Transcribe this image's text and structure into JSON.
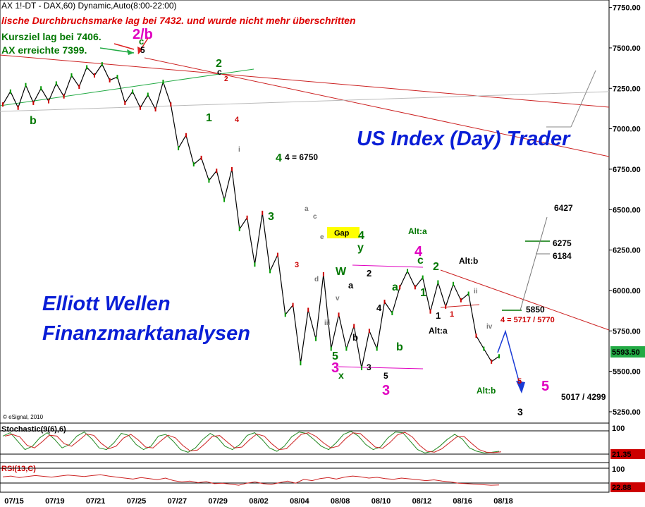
{
  "header": {
    "title": "AX 1!-DT - DAX,60) Dynamic,Auto(8:00-22:00)",
    "breakout_note": "lische Durchbruchsmarke lag bei 7432. und wurde nicht mehr überschritten",
    "target_note": "Kursziel lag bei 7406.",
    "reached_note": "AX erreichte 7399.",
    "copyright": "© eSignal, 2010"
  },
  "overlays": {
    "brand_right": "US Index (Day) Trader",
    "brand_left_1": "Elliott Wellen",
    "brand_left_2": "Finanzmarktanalysen"
  },
  "chart_data": {
    "type": "line",
    "title": "AX 1!-DT - DAX,60) Dynamic,Auto(8:00-22:00)",
    "price_axis": {
      "ticks": [
        "7750.00",
        "7500.00",
        "7250.00",
        "7000.00",
        "6750.00",
        "6500.00",
        "6250.00",
        "6000.00",
        "5750.00",
        "5500.00",
        "5250.00"
      ],
      "range": [
        5180,
        7770
      ],
      "last_price": "5593.50"
    },
    "date_axis": {
      "ticks": [
        "07/15",
        "07/19",
        "07/21",
        "07/25",
        "07/27",
        "07/29",
        "08/02",
        "08/04",
        "08/08",
        "08/10",
        "08/12",
        "08/16",
        "08/18"
      ]
    },
    "price_series": [
      {
        "d": "07/15",
        "v": 7150
      },
      {
        "d": "07/16",
        "v": 7230
      },
      {
        "d": "07/16",
        "v": 7130
      },
      {
        "d": "07/19",
        "v": 7270
      },
      {
        "d": "07/19",
        "v": 7160
      },
      {
        "d": "07/20",
        "v": 7250
      },
      {
        "d": "07/20",
        "v": 7170
      },
      {
        "d": "07/21",
        "v": 7280
      },
      {
        "d": "07/21",
        "v": 7200
      },
      {
        "d": "07/22",
        "v": 7330
      },
      {
        "d": "07/22",
        "v": 7260
      },
      {
        "d": "07/25",
        "v": 7380
      },
      {
        "d": "07/25",
        "v": 7330
      },
      {
        "d": "07/26",
        "v": 7399
      },
      {
        "d": "07/26",
        "v": 7300
      },
      {
        "d": "07/27",
        "v": 7320
      },
      {
        "d": "07/27",
        "v": 7160
      },
      {
        "d": "07/28",
        "v": 7230
      },
      {
        "d": "07/28",
        "v": 7130
      },
      {
        "d": "07/29",
        "v": 7210
      },
      {
        "d": "07/29",
        "v": 7120
      },
      {
        "d": "07/29",
        "v": 7290
      },
      {
        "d": "08/01",
        "v": 7150
      },
      {
        "d": "08/01",
        "v": 6880
      },
      {
        "d": "08/02",
        "v": 6960
      },
      {
        "d": "08/02",
        "v": 6780
      },
      {
        "d": "08/03",
        "v": 6820
      },
      {
        "d": "08/03",
        "v": 6680
      },
      {
        "d": "08/04",
        "v": 6740
      },
      {
        "d": "08/04",
        "v": 6560
      },
      {
        "d": "08/04",
        "v": 6750
      },
      {
        "d": "08/05",
        "v": 6380
      },
      {
        "d": "08/05",
        "v": 6450
      },
      {
        "d": "08/05",
        "v": 6160
      },
      {
        "d": "08/08",
        "v": 6480
      },
      {
        "d": "08/08",
        "v": 6120
      },
      {
        "d": "08/08",
        "v": 6220
      },
      {
        "d": "08/09",
        "v": 5850
      },
      {
        "d": "08/09",
        "v": 5910
      },
      {
        "d": "08/09",
        "v": 5550
      },
      {
        "d": "08/09",
        "v": 5880
      },
      {
        "d": "08/09",
        "v": 5700
      },
      {
        "d": "08/10",
        "v": 6100
      },
      {
        "d": "08/10",
        "v": 5640
      },
      {
        "d": "08/10",
        "v": 5850
      },
      {
        "d": "08/10",
        "v": 5640
      },
      {
        "d": "08/11",
        "v": 5780
      },
      {
        "d": "08/11",
        "v": 5520
      },
      {
        "d": "08/11",
        "v": 5750
      },
      {
        "d": "08/11",
        "v": 5640
      },
      {
        "d": "08/12",
        "v": 5930
      },
      {
        "d": "08/12",
        "v": 5860
      },
      {
        "d": "08/12",
        "v": 6020
      },
      {
        "d": "08/15",
        "v": 6120
      },
      {
        "d": "08/15",
        "v": 6020
      },
      {
        "d": "08/15",
        "v": 6080
      },
      {
        "d": "08/16",
        "v": 5870
      },
      {
        "d": "08/16",
        "v": 6050
      },
      {
        "d": "08/16",
        "v": 5900
      },
      {
        "d": "08/17",
        "v": 6040
      },
      {
        "d": "08/17",
        "v": 5940
      },
      {
        "d": "08/17",
        "v": 5980
      },
      {
        "d": "08/18",
        "v": 5720
      },
      {
        "d": "08/18",
        "v": 5640
      },
      {
        "d": "08/18",
        "v": 5560
      },
      {
        "d": "08/18",
        "v": 5593
      }
    ],
    "level_labels": [
      "6427",
      "6275",
      "6184",
      "5850",
      "4 = 5717 / 5770",
      "5017 / 4299",
      "4 = 6750"
    ],
    "wave_labels": [
      {
        "t": "2/b",
        "c": "#e000c0"
      },
      {
        "t": "c",
        "c": "#007700"
      },
      {
        "t": "5",
        "c": "#000"
      },
      {
        "t": "2",
        "c": "#007700"
      },
      {
        "t": "c",
        "c": "#000"
      },
      {
        "t": "2",
        "c": "#cc0000"
      },
      {
        "t": "1",
        "c": "#007700"
      },
      {
        "t": "b",
        "c": "#007700"
      },
      {
        "t": "3",
        "c": "#007700"
      },
      {
        "t": "4",
        "c": "#007700"
      },
      {
        "t": "3",
        "c": "#e000c0"
      },
      {
        "t": "5",
        "c": "#007700"
      },
      {
        "t": "x",
        "c": "#007700"
      },
      {
        "t": "W",
        "c": "#007700"
      },
      {
        "t": "4",
        "c": "#007700"
      },
      {
        "t": "y",
        "c": "#007700"
      },
      {
        "t": "4",
        "c": "#e000c0"
      },
      {
        "t": "3",
        "c": "#e000c0"
      },
      {
        "t": "5",
        "c": "#e000c0"
      },
      {
        "t": "1",
        "c": "#007700"
      },
      {
        "t": "2",
        "c": "#007700"
      },
      {
        "t": "a",
        "c": "#007700"
      },
      {
        "t": "b",
        "c": "#007700"
      },
      {
        "t": "c",
        "c": "#007700"
      },
      {
        "t": "Alt:a",
        "c": "#007700"
      },
      {
        "t": "Alt:b",
        "c": "#000"
      },
      {
        "t": "Alt:a",
        "c": "#000"
      },
      {
        "t": "Alt:b",
        "c": "#007700"
      },
      {
        "t": "Gap",
        "c": "#000"
      },
      {
        "t": "3",
        "c": "#000"
      },
      {
        "t": "5",
        "c": "#000"
      },
      {
        "t": "3",
        "c": "#000"
      },
      {
        "t": "2",
        "c": "#000"
      },
      {
        "t": "4",
        "c": "#000"
      },
      {
        "t": "1",
        "c": "#000"
      },
      {
        "t": "b",
        "c": "#000"
      },
      {
        "t": "a",
        "c": "#000"
      },
      {
        "t": "1",
        "c": "#cc0000"
      },
      {
        "t": "4",
        "c": "#cc0000"
      },
      {
        "t": "3",
        "c": "#cc0000"
      },
      {
        "t": "5",
        "c": "#cc0000"
      },
      {
        "t": "iii",
        "c": "#777"
      },
      {
        "t": "iv",
        "c": "#777"
      },
      {
        "t": "ii",
        "c": "#777"
      },
      {
        "t": "i",
        "c": "#777"
      },
      {
        "t": "v",
        "c": "#777"
      },
      {
        "t": "a",
        "c": "#777"
      },
      {
        "t": "c",
        "c": "#777"
      },
      {
        "t": "d",
        "c": "#777"
      },
      {
        "t": "e",
        "c": "#777"
      }
    ],
    "stochastic": {
      "label": "Stochastic(9(6),6)",
      "ticks": [
        "100"
      ],
      "last": "21.35",
      "k": [
        70,
        80,
        55,
        30,
        40,
        65,
        80,
        60,
        35,
        45,
        70,
        82,
        62,
        35,
        30,
        50,
        78,
        72,
        45,
        30,
        40,
        70,
        75,
        55,
        30,
        22,
        35,
        60,
        78,
        65,
        40,
        30,
        45,
        72,
        80,
        60,
        35,
        25,
        40,
        68,
        82,
        78,
        60,
        40,
        30,
        50,
        75,
        84,
        70,
        45,
        30,
        38,
        65,
        82,
        80,
        55,
        30,
        20,
        25,
        40,
        60,
        75,
        62,
        35,
        25,
        20,
        22,
        25
      ]
    },
    "rsi": {
      "label": "RSI(13,C)",
      "ticks": [
        "100"
      ],
      "last": "22.88",
      "v": [
        55,
        58,
        52,
        56,
        60,
        57,
        54,
        58,
        62,
        59,
        56,
        60,
        63,
        58,
        54,
        50,
        46,
        52,
        48,
        44,
        50,
        40,
        35,
        38,
        32,
        36,
        28,
        30,
        26,
        22,
        30,
        35,
        28,
        25,
        32,
        38,
        30,
        45,
        40,
        48,
        52,
        46,
        54,
        58,
        55,
        50,
        53,
        48,
        45,
        50,
        47,
        44,
        40,
        43,
        38,
        35,
        30,
        28,
        26,
        24,
        22,
        23
      ]
    }
  }
}
